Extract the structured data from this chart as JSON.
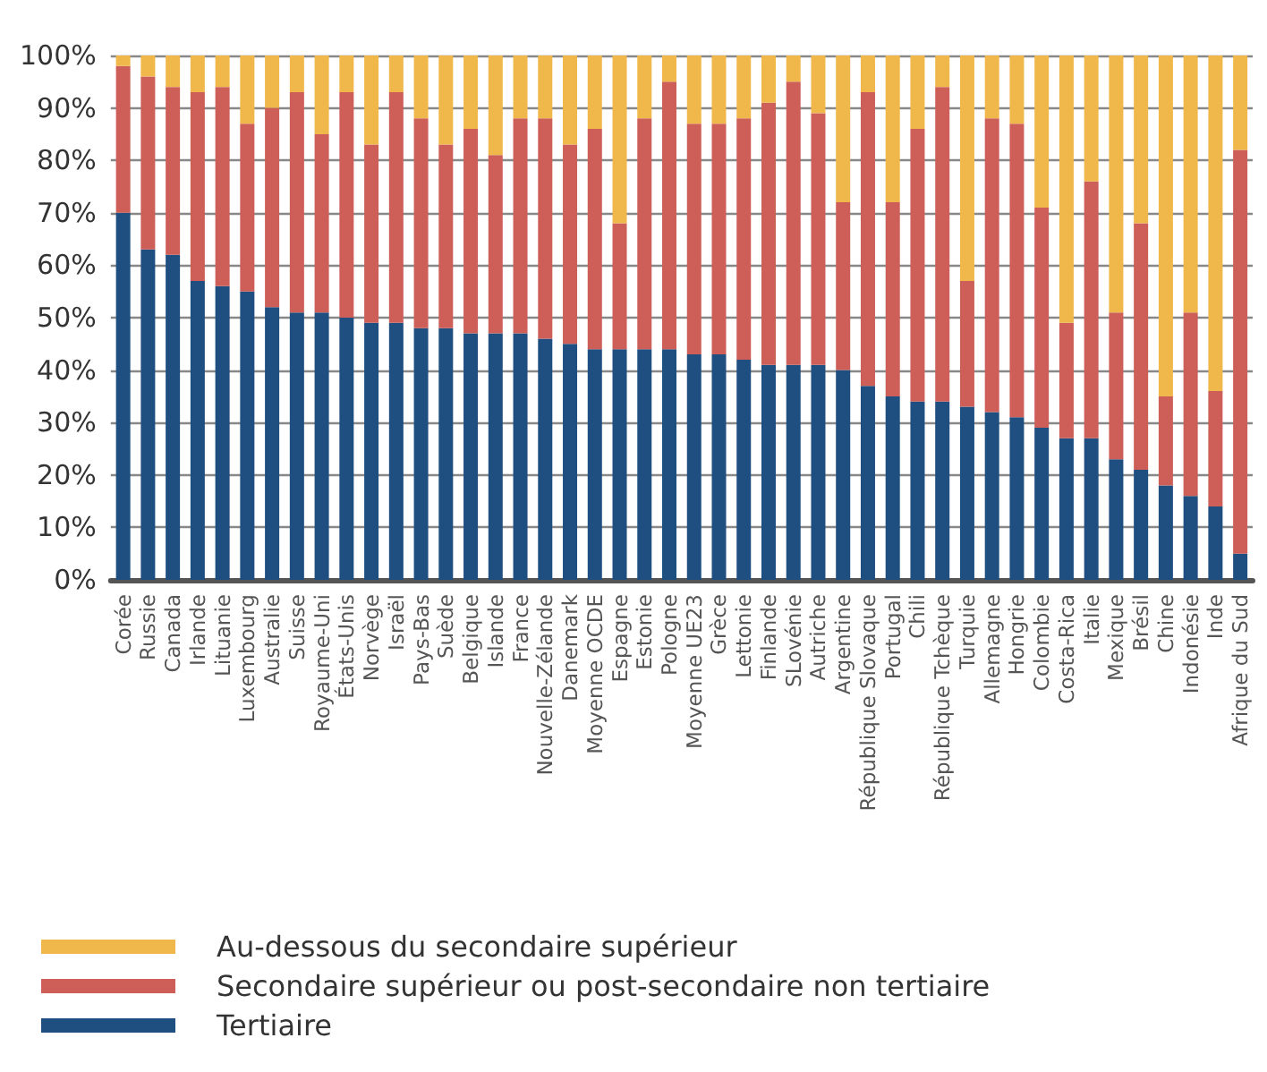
{
  "chart_data": {
    "type": "bar",
    "stacked": true,
    "categories": [
      "Corée",
      "Russie",
      "Canada",
      "Irlande",
      "Lituanie",
      "Luxembourg",
      "Australie",
      "Suisse",
      "Royaume-Uni",
      "États-Unis",
      "Norvège",
      "Israël",
      "Pays-Bas",
      "Suède",
      "Belgique",
      "Islande",
      "France",
      "Nouvelle-Zélande",
      "Danemark",
      "Moyenne OCDE",
      "Espagne",
      "Estonie",
      "Pologne",
      "Moyenne UE23",
      "Grèce",
      "Lettonie",
      "Finlande",
      "SLovénie",
      "Autriche",
      "Argentine",
      "République Slovaque",
      "Portugal",
      "Chili",
      "République Tchèque",
      "Turquie",
      "Allemagne",
      "Hongrie",
      "Colombie",
      "Costa-Rica",
      "Italie",
      "Mexique",
      "Brésil",
      "Chine",
      "Indonésie",
      "Inde",
      "Afrique du Sud"
    ],
    "series": [
      {
        "name": "Tertiaire",
        "color": "#1f4e80",
        "values": [
          70,
          63,
          62,
          57,
          56,
          55,
          52,
          51,
          51,
          50,
          49,
          49,
          48,
          48,
          47,
          47,
          47,
          46,
          45,
          44,
          44,
          44,
          44,
          43,
          43,
          42,
          41,
          41,
          41,
          40,
          37,
          35,
          34,
          34,
          33,
          32,
          31,
          29,
          27,
          27,
          23,
          21,
          18,
          16,
          14,
          5
        ]
      },
      {
        "name": "Secondaire supérieur ou post-secondaire non tertiaire",
        "color": "#cd5f58",
        "values": [
          28,
          33,
          32,
          36,
          38,
          32,
          38,
          42,
          34,
          43,
          34,
          44,
          40,
          35,
          39,
          34,
          41,
          42,
          38,
          42,
          24,
          44,
          51,
          44,
          44,
          46,
          50,
          54,
          48,
          32,
          56,
          37,
          52,
          60,
          24,
          56,
          56,
          42,
          22,
          49,
          28,
          47,
          17,
          35,
          22,
          77
        ]
      },
      {
        "name": "Au-dessous du secondaire supérieur",
        "color": "#f0b84a",
        "values": [
          2,
          4,
          6,
          7,
          6,
          13,
          10,
          7,
          15,
          7,
          17,
          7,
          12,
          17,
          14,
          19,
          12,
          12,
          17,
          14,
          32,
          12,
          5,
          13,
          13,
          12,
          9,
          5,
          11,
          28,
          7,
          28,
          14,
          6,
          43,
          12,
          13,
          29,
          51,
          24,
          49,
          32,
          65,
          49,
          64,
          18
        ]
      }
    ],
    "ylim": [
      0,
      100
    ],
    "yticks": [
      {
        "value": 0,
        "label": "0%"
      },
      {
        "value": 10,
        "label": "10%"
      },
      {
        "value": 20,
        "label": "20%"
      },
      {
        "value": 30,
        "label": "30%"
      },
      {
        "value": 40,
        "label": "40%"
      },
      {
        "value": 50,
        "label": "50%"
      },
      {
        "value": 60,
        "label": "60%"
      },
      {
        "value": 70,
        "label": "70%"
      },
      {
        "value": 80,
        "label": "80%"
      },
      {
        "value": 90,
        "label": "90%"
      },
      {
        "value": 100,
        "label": "100%"
      }
    ],
    "grid": "y",
    "legend": "bottom"
  }
}
